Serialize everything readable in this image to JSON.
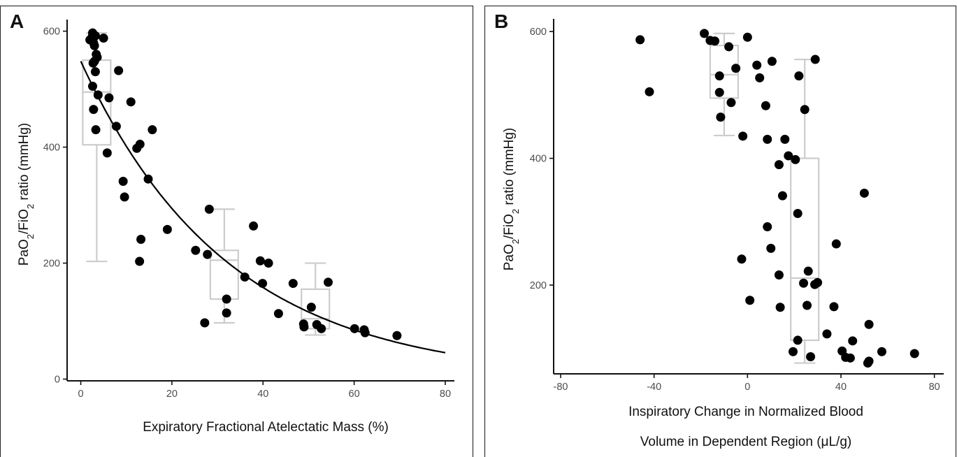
{
  "chart_data": [
    {
      "type": "scatter",
      "panel_letter": "A",
      "title": "",
      "xlabel": "Expiratory Fractional Atelectatic Mass (%)",
      "ylabel_parts": [
        "PaO",
        "2",
        "/FiO",
        "2",
        " ratio (mmHg)"
      ],
      "xlim": [
        -3,
        82
      ],
      "ylim": [
        -3,
        620
      ],
      "xticks": [
        0,
        20,
        40,
        60,
        80
      ],
      "yticks": [
        0,
        200,
        400,
        600
      ],
      "grid": false,
      "legend": "none",
      "points": [
        [
          2.0,
          585
        ],
        [
          2.5,
          590
        ],
        [
          2.6,
          597
        ],
        [
          2.8,
          580
        ],
        [
          3.0,
          575
        ],
        [
          3.2,
          592
        ],
        [
          3.4,
          560
        ],
        [
          3.0,
          548
        ],
        [
          2.7,
          545
        ],
        [
          3.2,
          530
        ],
        [
          3.6,
          555
        ],
        [
          5.0,
          588
        ],
        [
          2.6,
          505
        ],
        [
          3.8,
          490
        ],
        [
          2.8,
          465
        ],
        [
          3.3,
          430
        ],
        [
          6.2,
          485
        ],
        [
          8.3,
          532
        ],
        [
          7.8,
          436
        ],
        [
          5.8,
          390
        ],
        [
          11.0,
          478
        ],
        [
          12.3,
          398
        ],
        [
          13.0,
          405
        ],
        [
          15.7,
          430
        ],
        [
          9.3,
          341
        ],
        [
          9.6,
          314
        ],
        [
          14.8,
          345
        ],
        [
          13.2,
          241
        ],
        [
          12.9,
          203
        ],
        [
          19.0,
          258
        ],
        [
          25.2,
          222
        ],
        [
          27.8,
          215
        ],
        [
          28.2,
          293
        ],
        [
          27.2,
          97
        ],
        [
          32.0,
          138
        ],
        [
          32.0,
          114
        ],
        [
          36.0,
          176
        ],
        [
          37.9,
          264
        ],
        [
          39.4,
          204
        ],
        [
          39.9,
          165
        ],
        [
          41.2,
          200
        ],
        [
          43.4,
          113
        ],
        [
          46.6,
          165
        ],
        [
          48.9,
          95
        ],
        [
          49.0,
          90
        ],
        [
          50.6,
          124
        ],
        [
          51.8,
          94
        ],
        [
          52.8,
          87
        ],
        [
          54.3,
          167
        ],
        [
          60.1,
          87
        ],
        [
          62.2,
          85
        ],
        [
          62.4,
          80
        ],
        [
          69.4,
          75
        ]
      ],
      "fit_curve": {
        "a": 548,
        "b": 0.0311,
        "x_from": 0,
        "x_to": 80
      },
      "boxplots": [
        {
          "x": 3.5,
          "whisker_low": 203,
          "q1": 404,
          "median": 495,
          "q3": 550,
          "whisker_high": 597
        },
        {
          "x": 31.5,
          "whisker_low": 97,
          "q1": 138,
          "median": 205,
          "q3": 222,
          "whisker_high": 293
        },
        {
          "x": 51.5,
          "whisker_low": 76,
          "q1": 87,
          "median": 104,
          "q3": 155,
          "whisker_high": 200
        }
      ]
    },
    {
      "type": "scatter",
      "panel_letter": "B",
      "title": "",
      "xlabel_lines": [
        "Inspiratory Change in Normalized Blood",
        "Volume in Dependent Region (μL/g)"
      ],
      "ylabel_parts": [
        "PaO",
        "2",
        "/FiO",
        "2",
        " ratio (mmHg)"
      ],
      "xlim": [
        -83,
        84
      ],
      "ylim": [
        60,
        620
      ],
      "xticks": [
        -80,
        -40,
        0,
        40,
        80
      ],
      "yticks": [
        200,
        400,
        600
      ],
      "grid": false,
      "legend": "none",
      "points": [
        [
          -46,
          587
        ],
        [
          -42,
          505
        ],
        [
          -18.5,
          597
        ],
        [
          -16,
          586
        ],
        [
          -14,
          585
        ],
        [
          -12,
          530
        ],
        [
          -12,
          504
        ],
        [
          -8,
          576
        ],
        [
          -5,
          542
        ],
        [
          -7,
          488
        ],
        [
          -11.5,
          465
        ],
        [
          0,
          591
        ],
        [
          4,
          547
        ],
        [
          5.2,
          527
        ],
        [
          10.5,
          553
        ],
        [
          -2,
          435
        ],
        [
          7.8,
          483
        ],
        [
          8.5,
          430
        ],
        [
          16,
          430
        ],
        [
          13.5,
          390
        ],
        [
          17.5,
          404
        ],
        [
          20.5,
          398
        ],
        [
          22,
          530
        ],
        [
          24.5,
          477
        ],
        [
          29,
          556
        ],
        [
          15,
          341
        ],
        [
          21.5,
          313
        ],
        [
          8.5,
          292
        ],
        [
          10,
          258
        ],
        [
          -2.5,
          241
        ],
        [
          50,
          345
        ],
        [
          38,
          265
        ],
        [
          13.5,
          216
        ],
        [
          26,
          222
        ],
        [
          24,
          203
        ],
        [
          28.8,
          201
        ],
        [
          30,
          204
        ],
        [
          1,
          176
        ],
        [
          14,
          165
        ],
        [
          25.5,
          168
        ],
        [
          37,
          166
        ],
        [
          19.5,
          95
        ],
        [
          21.5,
          113
        ],
        [
          27,
          87
        ],
        [
          34,
          123
        ],
        [
          40.5,
          96
        ],
        [
          42,
          86
        ],
        [
          45,
          112
        ],
        [
          44,
          85
        ],
        [
          52,
          138
        ],
        [
          52,
          80
        ],
        [
          51.5,
          77
        ],
        [
          57.5,
          95
        ],
        [
          71.5,
          92
        ]
      ],
      "boxplots": [
        {
          "x": -10,
          "whisker_low": 436,
          "q1": 495,
          "median": 532,
          "q3": 578,
          "whisker_high": 597
        },
        {
          "x": 24.5,
          "whisker_low": 77,
          "q1": 113,
          "median": 211,
          "q3": 400,
          "whisker_high": 556
        }
      ]
    }
  ]
}
